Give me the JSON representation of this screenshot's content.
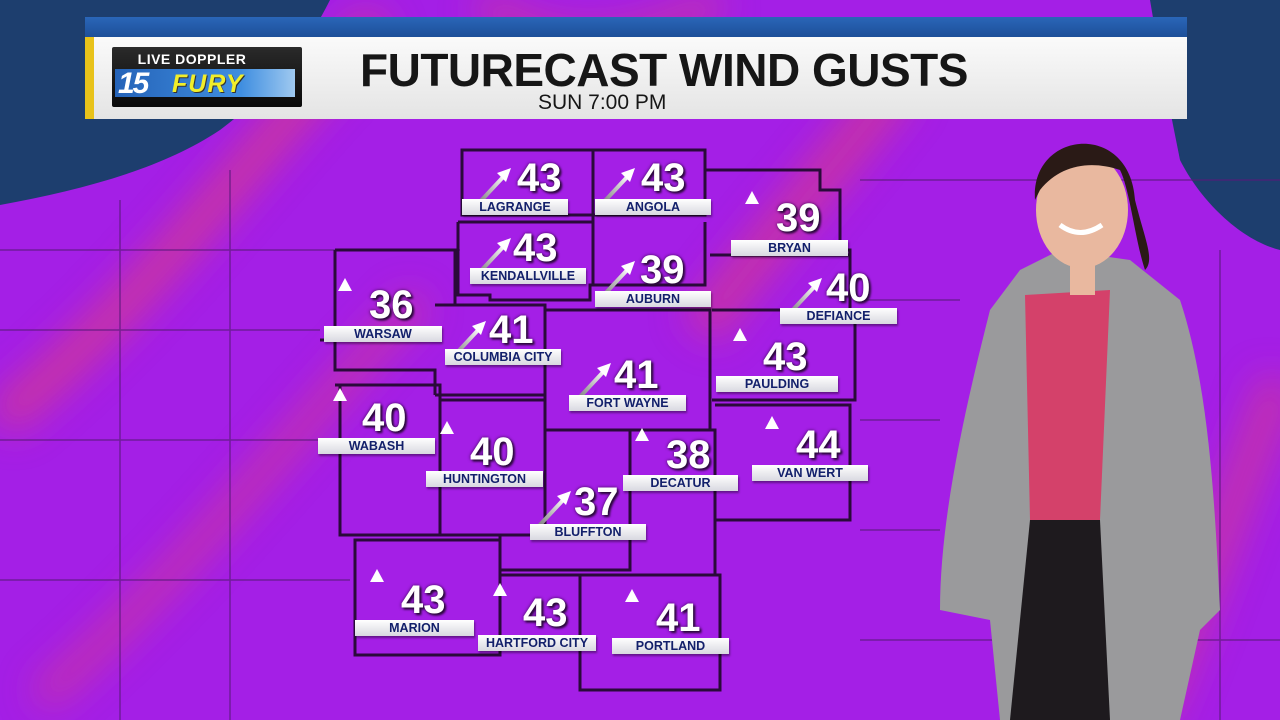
{
  "header": {
    "logo": {
      "top": "LIVE DOPPLER",
      "number": "15",
      "brand": "FURY"
    },
    "title": "FUTURECAST WIND GUSTS",
    "time": "SUN  7:00 PM"
  },
  "units": "mph",
  "colors": {
    "gust_field": "#a41fe6",
    "stronger_gusts": "#e0407a",
    "water": "#1d3e6e",
    "label_text": "#13206b",
    "title_accent": "#e8c21a",
    "title_bar": "#2a66b8"
  },
  "locations": [
    {
      "name": "LAGRANGE",
      "gust": "43",
      "direction_icon": "arrow-northeast"
    },
    {
      "name": "ANGOLA",
      "gust": "43",
      "direction_icon": "arrow-northeast"
    },
    {
      "name": "KENDALLVILLE",
      "gust": "43",
      "direction_icon": "arrow-northeast"
    },
    {
      "name": "AUBURN",
      "gust": "39",
      "direction_icon": "arrow-northeast"
    },
    {
      "name": "BRYAN",
      "gust": "39",
      "direction_icon": "arrow-north"
    },
    {
      "name": "DEFIANCE",
      "gust": "40",
      "direction_icon": "arrow-northeast"
    },
    {
      "name": "WARSAW",
      "gust": "36",
      "direction_icon": "arrow-north"
    },
    {
      "name": "COLUMBIA CITY",
      "gust": "41",
      "direction_icon": "arrow-northeast"
    },
    {
      "name": "FORT WAYNE",
      "gust": "41",
      "direction_icon": "arrow-northeast"
    },
    {
      "name": "PAULDING",
      "gust": "43",
      "direction_icon": "arrow-north"
    },
    {
      "name": "WABASH",
      "gust": "40",
      "direction_icon": "arrow-north"
    },
    {
      "name": "HUNTINGTON",
      "gust": "40",
      "direction_icon": "arrow-north"
    },
    {
      "name": "DECATUR",
      "gust": "38",
      "direction_icon": "arrow-north"
    },
    {
      "name": "VAN WERT",
      "gust": "44",
      "direction_icon": "arrow-north"
    },
    {
      "name": "BLUFFTON",
      "gust": "37",
      "direction_icon": "arrow-northeast"
    },
    {
      "name": "MARION",
      "gust": "43",
      "direction_icon": "arrow-north"
    },
    {
      "name": "HARTFORD CITY",
      "gust": "43",
      "direction_icon": "arrow-north"
    },
    {
      "name": "PORTLAND",
      "gust": "41",
      "direction_icon": "arrow-north"
    }
  ]
}
